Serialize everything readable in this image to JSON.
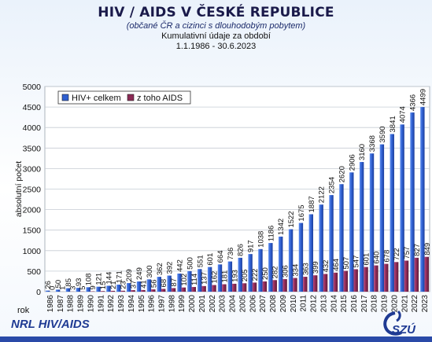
{
  "header": {
    "title": "HIV / AIDS V ČESKÉ REPUBLICE",
    "subtitle": "(občané ČR a cizinci s dlouhodobým pobytem)",
    "line3": "Kumulativní údaje za období",
    "line4": "1.1.1986 - 30.6.2023"
  },
  "footer": {
    "left": "NRL HIV/AIDS",
    "logo_text": "SZÚ"
  },
  "chart_data": {
    "type": "bar",
    "ylabel": "absolutní počet",
    "xlabel": "rok",
    "ylim": [
      0,
      5000
    ],
    "yticks": [
      0,
      500,
      1000,
      1500,
      2000,
      2500,
      3000,
      3500,
      4000,
      4500,
      5000
    ],
    "grid": true,
    "legend_position": "top-left",
    "categories": [
      "1986",
      "1987",
      "1988",
      "1989",
      "1990",
      "1991",
      "1992",
      "1993",
      "1994",
      "1995",
      "1996",
      "1997",
      "1998",
      "1999",
      "2000",
      "2001",
      "2002",
      "2003",
      "2004",
      "2005",
      "2006",
      "2007",
      "2008",
      "2009",
      "2010",
      "2011",
      "2012",
      "2013",
      "2014",
      "2015",
      "2016",
      "2017",
      "2018",
      "2019",
      "2020",
      "2021",
      "2022",
      "2023"
    ],
    "series": [
      {
        "name": "HIV+ celkem",
        "color": "#2f5fd0",
        "values": [
          26,
          50,
          85,
          93,
          108,
          121,
          144,
          171,
          209,
          249,
          300,
          362,
          392,
          442,
          500,
          551,
          601,
          664,
          736,
          826,
          917,
          1038,
          1186,
          1342,
          1522,
          1675,
          1887,
          2122,
          2354,
          2620,
          2906,
          3160,
          3368,
          3590,
          3841,
          4074,
          4366,
          4499
        ]
      },
      {
        "name": "z toho AIDS",
        "color": "#8b2a55",
        "values": [
          0,
          1,
          3,
          5,
          9,
          15,
          21,
          23,
          37,
          41,
          56,
          68,
          87,
          102,
          114,
          137,
          162,
          181,
          193,
          205,
          222,
          250,
          282,
          306,
          334,
          363,
          399,
          432,
          464,
          507,
          547,
          601,
          640,
          678,
          722,
          757,
          827,
          849
        ]
      }
    ]
  }
}
